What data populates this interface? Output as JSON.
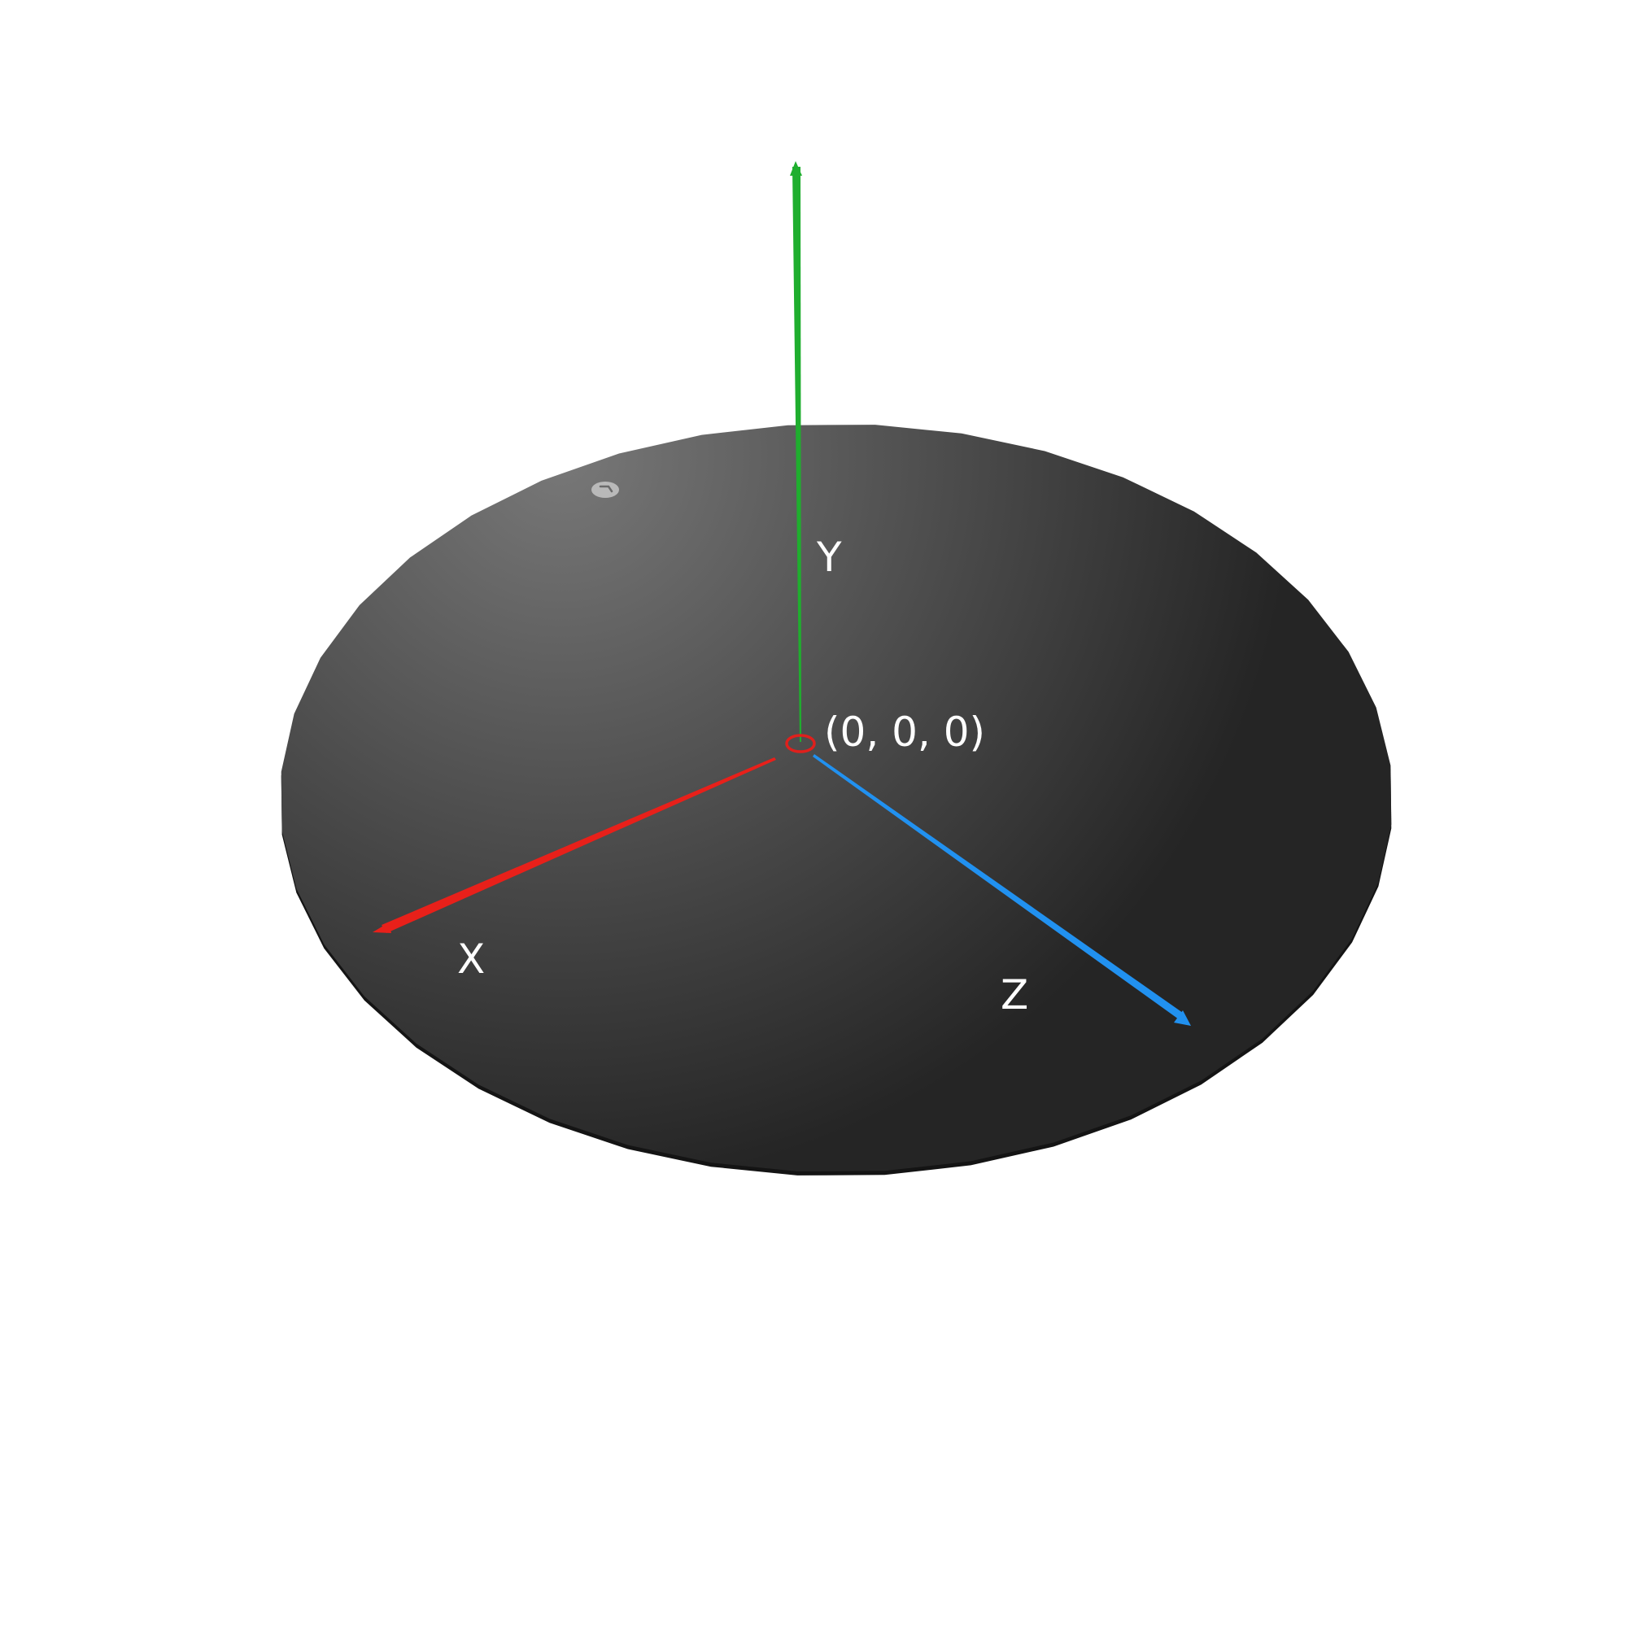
{
  "scene": {
    "background_color": "#ffffff",
    "disc": {
      "shape": "polygon",
      "sides": 40,
      "gradient_light": "#787878",
      "gradient_dark": "#252525",
      "edge_color": "#141414"
    },
    "origin": {
      "label": "(0, 0, 0)",
      "marker_color": "#e0201c"
    },
    "axes": [
      {
        "key": "x",
        "label": "X",
        "color": "#e8201a"
      },
      {
        "key": "y",
        "label": "Y",
        "color": "#1fae2e"
      },
      {
        "key": "z",
        "label": "Z",
        "color": "#2191f0"
      }
    ],
    "marker_icon": "small-grey-ellipse-marker"
  }
}
